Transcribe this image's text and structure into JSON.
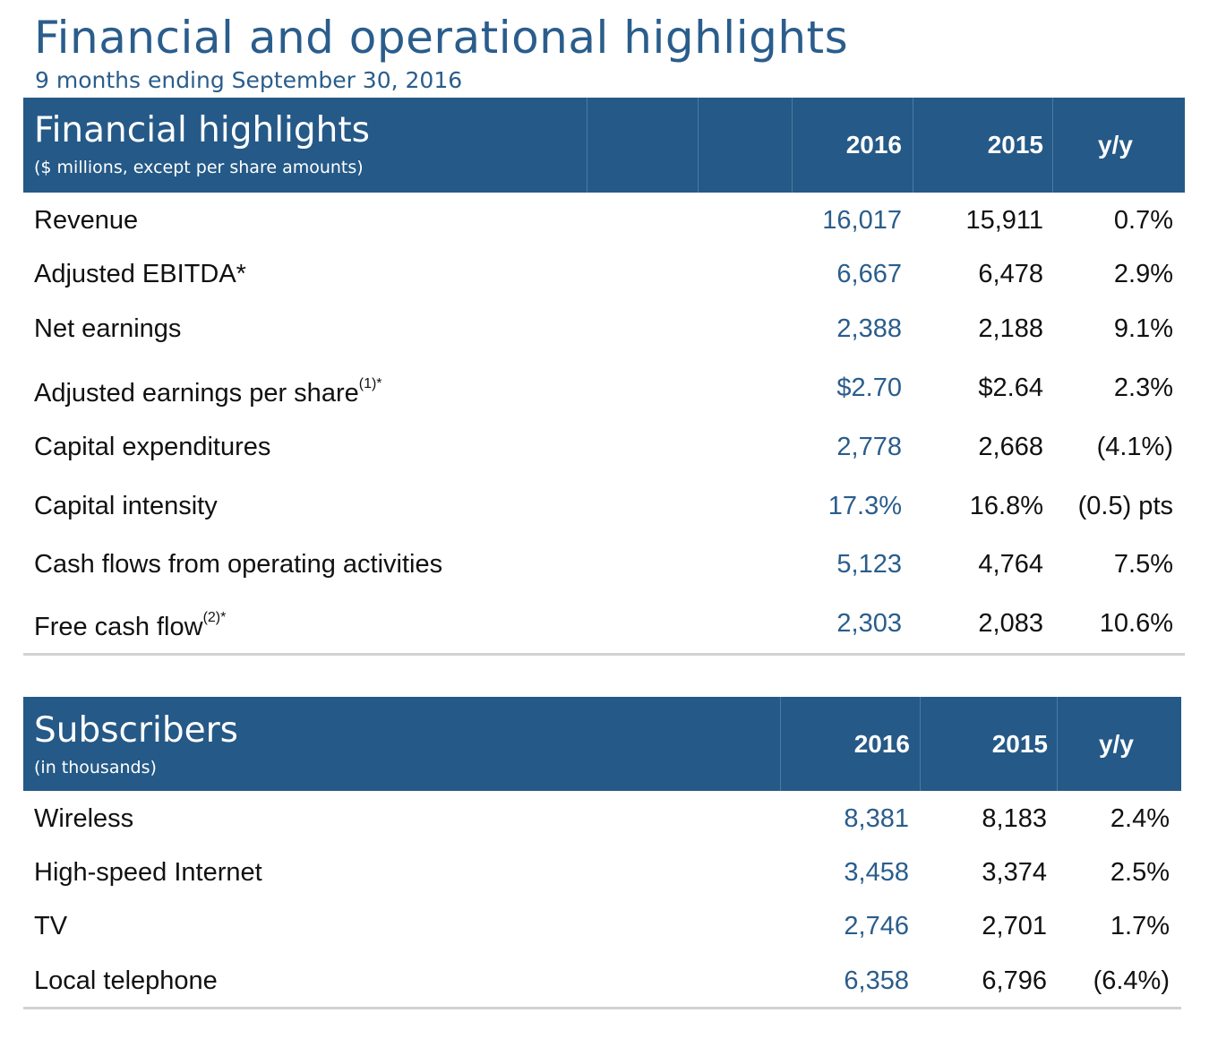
{
  "header": {
    "title": "Financial and operational highlights",
    "subtitle": "9 months ending September 30, 2016"
  },
  "financial": {
    "title": "Financial highlights",
    "subtitle": "($ millions, except per share amounts)",
    "columns": [
      "2016",
      "2015",
      "y/y"
    ],
    "rows": [
      {
        "label": "Revenue",
        "note": "",
        "v2016": "16,017",
        "v2015": "15,911",
        "yy": "0.7%"
      },
      {
        "label": "Adjusted EBITDA*",
        "note": "",
        "v2016": "6,667",
        "v2015": "6,478",
        "yy": "2.9%"
      },
      {
        "label": "Net earnings",
        "note": "",
        "v2016": "2,388",
        "v2015": "2,188",
        "yy": "9.1%"
      },
      {
        "label": "Adjusted earnings per share",
        "note": "(1)*",
        "v2016": "$2.70",
        "v2015": "$2.64",
        "yy": "2.3%"
      },
      {
        "label": "Capital expenditures",
        "note": "",
        "v2016": "2,778",
        "v2015": "2,668",
        "yy": "(4.1%)"
      },
      {
        "label": "Capital intensity",
        "note": "",
        "v2016": "17.3%",
        "v2015": "16.8%",
        "yy": "(0.5) pts"
      },
      {
        "label": "Cash flows from operating activities",
        "note": "",
        "v2016": "5,123",
        "v2015": "4,764",
        "yy": "7.5%"
      },
      {
        "label": "Free cash flow",
        "note": "(2)*",
        "v2016": "2,303",
        "v2015": "2,083",
        "yy": "10.6%"
      }
    ]
  },
  "subscribers": {
    "title": "Subscribers",
    "subtitle": "(in thousands)",
    "columns": [
      "2016",
      "2015",
      "y/y"
    ],
    "rows": [
      {
        "label": "Wireless",
        "v2016": "8,381",
        "v2015": "8,183",
        "yy": "2.4%"
      },
      {
        "label": "High-speed Internet",
        "v2016": "3,458",
        "v2015": "3,374",
        "yy": "2.5%"
      },
      {
        "label": "TV",
        "v2016": "2,746",
        "v2015": "2,701",
        "yy": "1.7%"
      },
      {
        "label": "Local telephone",
        "v2016": "6,358",
        "v2015": "6,796",
        "yy": "(6.4%)"
      }
    ]
  }
}
